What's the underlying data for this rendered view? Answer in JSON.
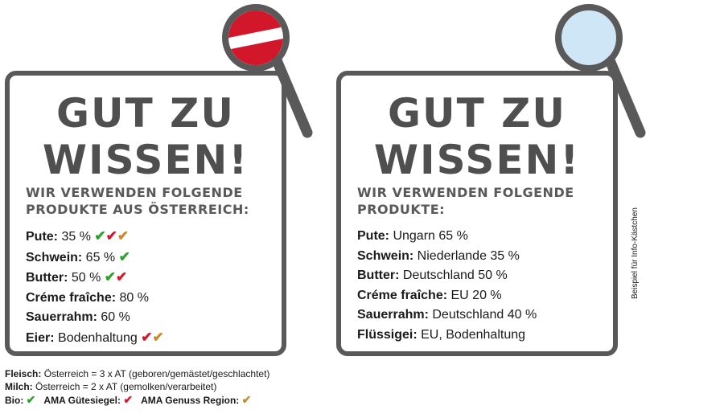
{
  "left": {
    "title_line1": "GUT ZU",
    "title_line2": "WISSEN!",
    "sub_line1": "WIR VERWENDEN FOLGENDE",
    "sub_line2": "PRODUKTE AUS ÖSTERREICH:",
    "items": [
      {
        "label": "Pute:",
        "value": "35 %",
        "checks": [
          "green",
          "red",
          "gold"
        ]
      },
      {
        "label": "Schwein:",
        "value": "65 %",
        "checks": [
          "green"
        ]
      },
      {
        "label": "Butter:",
        "value": "50 %",
        "checks": [
          "green",
          "red"
        ]
      },
      {
        "label": "Créme fraîche:",
        "value": "80 %",
        "checks": []
      },
      {
        "label": "Sauerrahm:",
        "value": "60 %",
        "checks": []
      },
      {
        "label": "Eier:",
        "value": "Bodenhaltung",
        "checks": [
          "red",
          "gold"
        ]
      }
    ],
    "glass_fill": "austrian-flag"
  },
  "right": {
    "title_line1": "GUT ZU",
    "title_line2": "WISSEN!",
    "sub_line1": "WIR VERWENDEN FOLGENDE",
    "sub_line2": "PRODUKTE:",
    "items": [
      {
        "label": "Pute:",
        "value": "Ungarn 65 %"
      },
      {
        "label": "Schwein:",
        "value": "Niederlande 35 %"
      },
      {
        "label": "Butter:",
        "value": "Deutschland 50 %"
      },
      {
        "label": "Créme fraîche:",
        "value": "EU 20 %"
      },
      {
        "label": "Sauerrahm:",
        "value": "Deutschland 40 %"
      },
      {
        "label": "Flüssigei:",
        "value": "EU, Bodenhaltung"
      }
    ],
    "glass_fill": "light-blue"
  },
  "footnotes": {
    "fleisch_label": "Fleisch:",
    "fleisch_text": "Österreich = 3 x AT (geboren/gemästet/geschlachtet)",
    "milch_label": "Milch:",
    "milch_text": "Österreich = 2 x AT (gemolken/verarbeitet)",
    "legend": [
      {
        "label": "Bio:",
        "check": "green"
      },
      {
        "label": "AMA Gütesiegel:",
        "check": "red"
      },
      {
        "label": "AMA Genuss Region:",
        "check": "gold"
      }
    ]
  },
  "side_note": "Beispiel für Info-Kästchen",
  "check_glyph": "✔",
  "colors": {
    "green": "#2aa12a",
    "red": "#d3172a",
    "gold": "#c9892b",
    "frame": "#595959",
    "light_blue": "#cfe6f7",
    "flag_red": "#d3172a"
  }
}
